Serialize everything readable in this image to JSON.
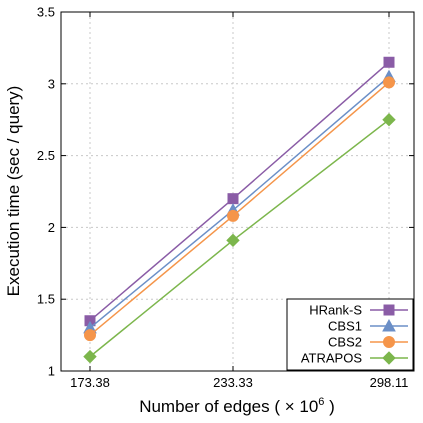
{
  "chart_data": {
    "type": "line",
    "title": "",
    "xlabel": "Number of edges ( × 10",
    "xlabel_exponent": "6",
    "xlabel_suffix": " )",
    "ylabel": "Execution time (sec / query)",
    "categories": [
      "173.38",
      "233.33",
      "298.11"
    ],
    "ylim": [
      1,
      3.5
    ],
    "yticks": [
      "1",
      "1.5",
      "2",
      "2.5",
      "3",
      "3.5"
    ],
    "grid": true,
    "legend_position": "bottom-right",
    "series": [
      {
        "name": "HRank-S",
        "values": [
          1.35,
          2.2,
          3.15
        ],
        "color": "#8a5ca6",
        "marker": "square"
      },
      {
        "name": "CBS1",
        "values": [
          1.3,
          2.12,
          3.05
        ],
        "color": "#6b8fc7",
        "marker": "triangle"
      },
      {
        "name": "CBS2",
        "values": [
          1.25,
          2.08,
          3.01
        ],
        "color": "#f5954a",
        "marker": "circle"
      },
      {
        "name": "ATRAPOS",
        "values": [
          1.1,
          1.91,
          2.75
        ],
        "color": "#7cb64c",
        "marker": "diamond"
      }
    ]
  }
}
